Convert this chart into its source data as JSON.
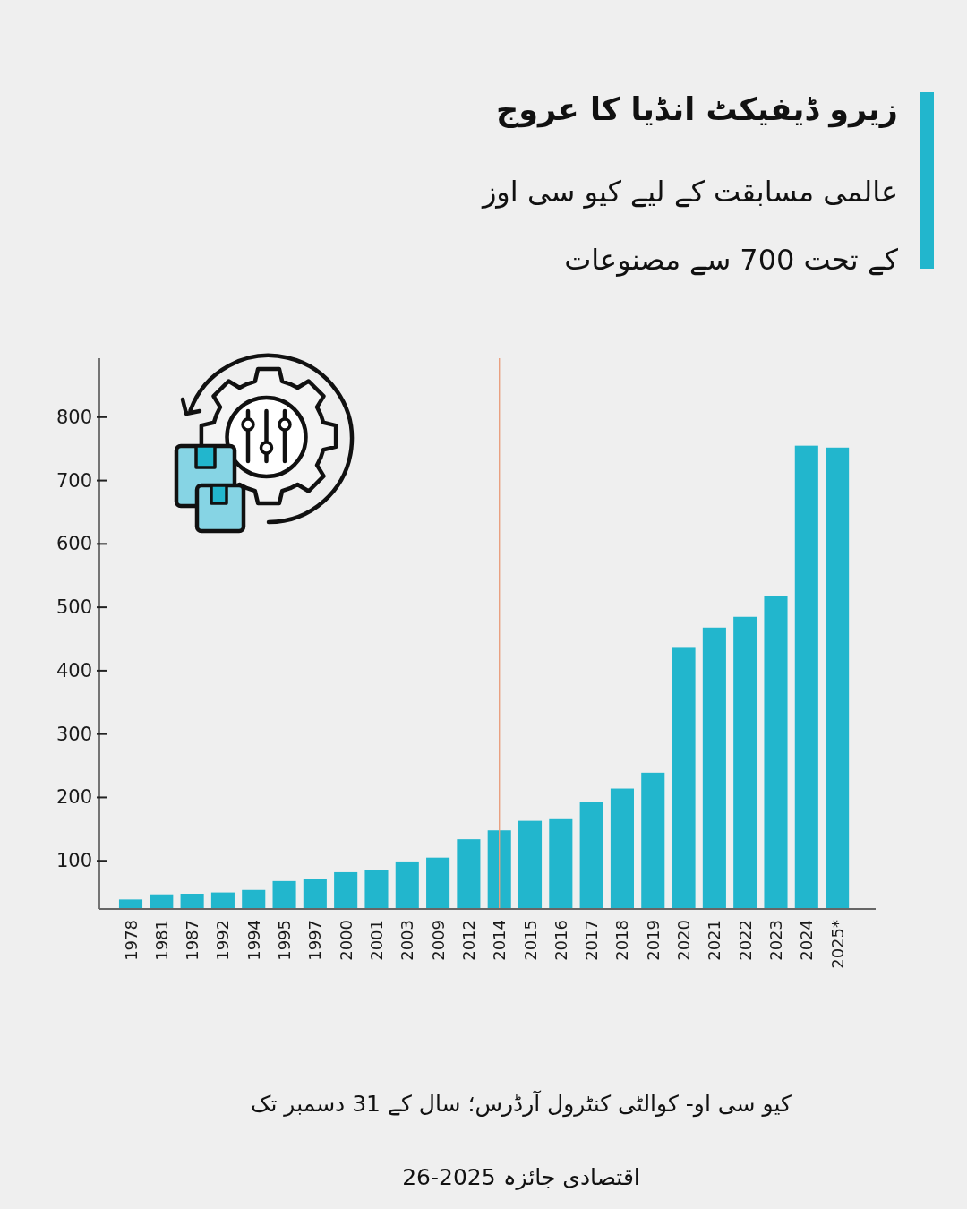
{
  "chart_data": {
    "type": "bar",
    "title": "زیرو ڈیفیکٹ انڈیا کا عروج",
    "subtitle": "عالمی مسابقت کے لیے کیو سی اوز کے تحت 700 سے مصنوعات",
    "categories": [
      "1978",
      "1981",
      "1987",
      "1992",
      "1994",
      "1995",
      "1997",
      "2000",
      "2001",
      "2003",
      "2009",
      "2012",
      "2014",
      "2015",
      "2016",
      "2017",
      "2018",
      "2019",
      "2020",
      "2021",
      "2022",
      "2023",
      "2024",
      "2025*"
    ],
    "values": [
      39,
      47,
      48,
      50,
      54,
      68,
      71,
      82,
      85,
      99,
      105,
      134,
      148,
      163,
      167,
      193,
      214,
      239,
      436,
      468,
      485,
      518,
      755,
      752
    ],
    "color": "#22b6cd",
    "ylim": [
      24,
      893
    ],
    "yticks": [
      100,
      200,
      300,
      400,
      500,
      600,
      700,
      800
    ],
    "ref_lines": [
      {
        "axis": "x",
        "value": "2014",
        "color": "#e9a07f"
      }
    ],
    "annotations": [
      "کیو سی او- کوالٹی کنٹرول آرڈرس؛ سال کے 31 دسمبر تک",
      "اقتصادی جائزہ 2025-26"
    ]
  }
}
